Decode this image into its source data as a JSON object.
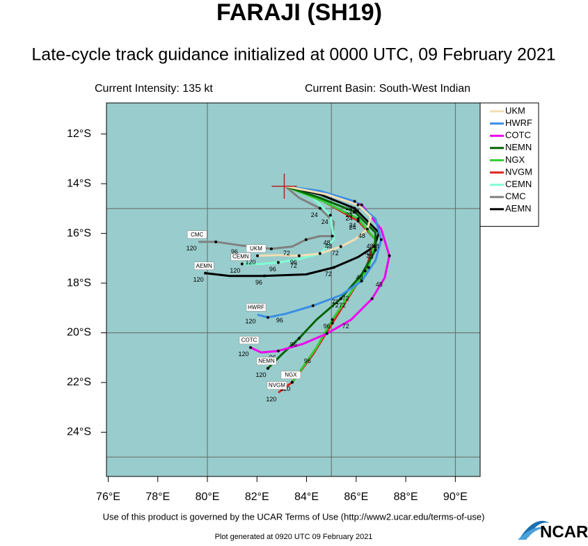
{
  "chart_data": {
    "type": "track-map",
    "title": "FARAJI (SH19)",
    "subtitle": "Late-cycle track guidance initialized at 0000 UTC, 09 February 2021",
    "intensity": "Current Intensity: 135 kt",
    "basin": "Current Basin: South-West Indian",
    "footer": "Use of this product is governed by the UCAR Terms of Use (http://www2.ucar.edu/terms-of-use)",
    "generated": "Plot generated at 0920 UTC  09 February 2021",
    "logo": "NCAR",
    "background": "#99cccc",
    "xlim": [
      75.93,
      91
    ],
    "ylim": [
      -25.78,
      -10.75
    ],
    "xticks": [
      {
        "value": 76,
        "label": "76°E"
      },
      {
        "value": 78,
        "label": "78°E"
      },
      {
        "value": 80,
        "label": "80°E"
      },
      {
        "value": 82,
        "label": "82°E"
      },
      {
        "value": 84,
        "label": "84°E"
      },
      {
        "value": 86,
        "label": "86°E"
      },
      {
        "value": 88,
        "label": "88°E"
      },
      {
        "value": 90,
        "label": "90°E"
      }
    ],
    "yticks": [
      {
        "value": -12,
        "label": "12°S"
      },
      {
        "value": -14,
        "label": "14°S"
      },
      {
        "value": -16,
        "label": "16°S"
      },
      {
        "value": -18,
        "label": "18°S"
      },
      {
        "value": -20,
        "label": "20°S"
      },
      {
        "value": -22,
        "label": "22°S"
      },
      {
        "value": -24,
        "label": "24°S"
      }
    ],
    "grid_lon": [
      80,
      85,
      90
    ],
    "grid_lat": [
      -15,
      -20,
      -25
    ],
    "current_position": {
      "lon": 83.1,
      "lat": -14.1
    },
    "tau_labels": [
      "24",
      "48",
      "72",
      "96",
      "120"
    ],
    "series": [
      {
        "name": "UKM",
        "color": "#f5deb3",
        "x": [
          83.14,
          84.82,
          86.08,
          86.59,
          86.45,
          85.94,
          85.38,
          84.54,
          83.7,
          82.86,
          82.02
        ],
        "values": [
          -14.1,
          -14.43,
          -14.85,
          -15.33,
          -15.83,
          -16.25,
          -16.53,
          -16.81,
          -16.9,
          -16.87,
          -16.9
        ]
      },
      {
        "name": "HWRF",
        "color": "#3a8ee6",
        "x": [
          83.14,
          84.54,
          85.94,
          86.78,
          87.01,
          86.78,
          86.22,
          85.38,
          84.26,
          83.14,
          82.44,
          82.02
        ],
        "values": [
          -14.1,
          -14.29,
          -14.71,
          -15.41,
          -16.25,
          -17.09,
          -17.92,
          -18.49,
          -18.91,
          -19.24,
          -19.38,
          -19.27
        ]
      },
      {
        "name": "COTC",
        "color": "#ee00ee",
        "x": [
          83.14,
          84.82,
          86.22,
          87.01,
          87.34,
          87.15,
          86.64,
          85.8,
          84.82,
          83.84,
          82.86,
          82.16,
          81.74
        ],
        "values": [
          -14.1,
          -14.38,
          -14.85,
          -15.83,
          -16.9,
          -17.79,
          -18.63,
          -19.47,
          -20.03,
          -20.45,
          -20.73,
          -20.79,
          -20.59
        ]
      },
      {
        "name": "NEMN",
        "color": "#006400",
        "x": [
          83.14,
          84.54,
          85.94,
          86.78,
          86.78,
          86.22,
          85.38,
          84.4,
          83.7,
          83.0,
          82.44
        ],
        "values": [
          -14.1,
          -14.57,
          -15.13,
          -15.97,
          -16.67,
          -17.65,
          -18.63,
          -19.47,
          -20.22,
          -20.87,
          -21.43
        ]
      },
      {
        "name": "NGX",
        "color": "#32cd32",
        "x": [
          83.14,
          84.68,
          86.08,
          86.78,
          86.5,
          85.8,
          85.04,
          84.4,
          83.42
        ],
        "values": [
          -14.1,
          -14.71,
          -15.41,
          -16.25,
          -17.37,
          -18.35,
          -19.47,
          -20.59,
          -21.99
        ]
      },
      {
        "name": "NVGM",
        "color": "#dd2222",
        "x": [
          83.14,
          84.68,
          86.08,
          86.78,
          86.36,
          85.66,
          85.04,
          84.26,
          83.42,
          82.86
        ],
        "values": [
          -14.1,
          -14.71,
          -15.5,
          -16.25,
          -17.51,
          -18.63,
          -19.61,
          -20.87,
          -21.99,
          -22.41
        ]
      },
      {
        "name": "CEMN",
        "color": "#7fffd4",
        "x": [
          83.14,
          84.26,
          84.96,
          85.1,
          84.54,
          83.7,
          82.86,
          82.16,
          81.4
        ],
        "values": [
          -14.1,
          -14.57,
          -15.27,
          -16.25,
          -16.81,
          -17.03,
          -17.17,
          -17.23,
          -17.23
        ]
      },
      {
        "name": "CMC",
        "color": "#808080",
        "x": [
          83.14,
          83.7,
          84.54,
          85.1,
          85.04,
          84.54,
          83.98,
          83.42,
          82.58,
          81.32,
          80.34,
          79.64
        ],
        "values": [
          -14.1,
          -14.57,
          -14.99,
          -15.55,
          -16.11,
          -16.11,
          -16.25,
          -16.53,
          -16.62,
          -16.48,
          -16.34,
          -16.34
        ]
      },
      {
        "name": "AEMN",
        "color": "#000000",
        "x": [
          83.14,
          84.54,
          85.94,
          86.92,
          86.73,
          86.08,
          85.1,
          83.98,
          82.3,
          80.9,
          79.92
        ],
        "values": [
          -14.1,
          -14.43,
          -14.99,
          -15.97,
          -16.53,
          -16.95,
          -17.37,
          -17.65,
          -17.71,
          -17.71,
          -17.6
        ]
      }
    ]
  }
}
